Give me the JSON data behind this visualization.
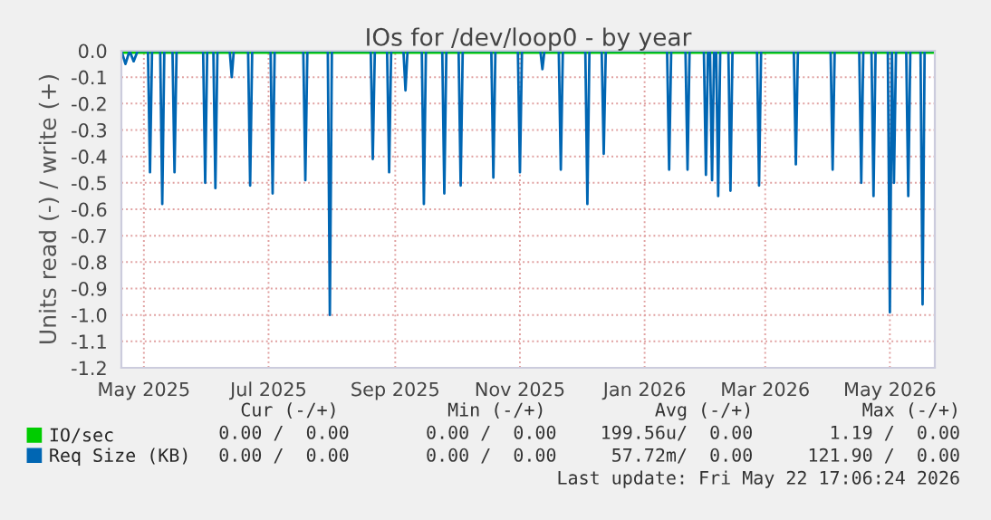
{
  "chart_data": {
    "type": "line",
    "title": "IOs for /dev/loop0 - by year",
    "ylabel": "Units read (-) / write (+)",
    "xlim": [
      "2025-04-20",
      "2026-05-23"
    ],
    "ylim": [
      -1.2,
      0.0
    ],
    "xticks": [
      {
        "value": "2025-05-01",
        "label": "May 2025"
      },
      {
        "value": "2025-07-01",
        "label": "Jul 2025"
      },
      {
        "value": "2025-09-01",
        "label": "Sep 2025"
      },
      {
        "value": "2025-11-01",
        "label": "Nov 2025"
      },
      {
        "value": "2026-01-01",
        "label": "Jan 2026"
      },
      {
        "value": "2026-03-01",
        "label": "Mar 2026"
      },
      {
        "value": "2026-05-01",
        "label": "May 2026"
      }
    ],
    "yticks": [
      {
        "value": 0,
        "label": "0.0"
      },
      -0.1,
      -0.2,
      -0.3,
      -0.4,
      -0.5,
      -0.6,
      -0.7,
      -0.8,
      -0.9,
      {
        "value": -1,
        "label": "-1.0"
      },
      -1.1,
      -1.2
    ],
    "grid": true,
    "legend": "bottom",
    "marker": "none",
    "line_style": "solid",
    "series": [
      {
        "name": "IO/sec",
        "color": "#00cc00",
        "x": [
          "2025-04-20",
          "2026-05-22"
        ],
        "values": [
          0.0,
          0.0
        ]
      },
      {
        "name": "Req Size (KB)",
        "color": "#0066b3",
        "x": [
          "2025-04-20",
          "2025-04-22",
          "2025-04-24",
          "2025-04-26",
          "2025-04-28",
          "2025-05-03",
          "2025-05-04",
          "2025-05-05",
          "2025-05-09",
          "2025-05-10",
          "2025-05-11",
          "2025-05-15",
          "2025-05-16",
          "2025-05-17",
          "2025-05-30",
          "2025-05-31",
          "2025-06-01",
          "2025-06-04",
          "2025-06-05",
          "2025-06-06",
          "2025-06-12",
          "2025-06-13",
          "2025-06-14",
          "2025-06-21",
          "2025-06-22",
          "2025-06-23",
          "2025-07-02",
          "2025-07-03",
          "2025-07-04",
          "2025-07-18",
          "2025-07-19",
          "2025-07-20",
          "2025-07-30",
          "2025-07-31",
          "2025-08-01",
          "2025-08-20",
          "2025-08-21",
          "2025-08-22",
          "2025-08-28",
          "2025-08-29",
          "2025-08-30",
          "2025-09-05",
          "2025-09-06",
          "2025-09-07",
          "2025-09-14",
          "2025-09-15",
          "2025-09-16",
          "2025-09-24",
          "2025-09-25",
          "2025-09-26",
          "2025-10-02",
          "2025-10-03",
          "2025-10-04",
          "2025-10-18",
          "2025-10-19",
          "2025-10-20",
          "2025-10-31",
          "2025-11-01",
          "2025-11-02",
          "2025-11-11",
          "2025-11-12",
          "2025-11-13",
          "2025-11-20",
          "2025-11-21",
          "2025-11-22",
          "2025-12-03",
          "2025-12-04",
          "2025-12-05",
          "2025-12-11",
          "2025-12-12",
          "2025-12-13",
          "2026-01-12",
          "2026-01-13",
          "2026-01-14",
          "2026-01-21",
          "2026-01-22",
          "2026-01-23",
          "2026-01-30",
          "2026-01-31",
          "2026-02-01",
          "2026-02-02",
          "2026-02-03",
          "2026-02-04",
          "2026-02-05",
          "2026-02-06",
          "2026-02-07",
          "2026-02-11",
          "2026-02-12",
          "2026-02-13",
          "2026-02-25",
          "2026-02-26",
          "2026-02-27",
          "2026-03-15",
          "2026-03-16",
          "2026-03-17",
          "2026-04-02",
          "2026-04-03",
          "2026-04-04",
          "2026-04-16",
          "2026-04-17",
          "2026-04-18",
          "2026-04-22",
          "2026-04-23",
          "2026-04-24",
          "2026-04-30",
          "2026-05-01",
          "2026-05-02",
          "2026-05-03",
          "2026-05-04",
          "2026-05-09",
          "2026-05-10",
          "2026-05-11",
          "2026-05-16",
          "2026-05-17",
          "2026-05-18",
          "2026-05-22"
        ],
        "values": [
          0,
          -0.05,
          0,
          -0.04,
          0,
          0,
          -0.46,
          0,
          0,
          -0.58,
          0,
          0,
          -0.46,
          0,
          0,
          -0.5,
          0,
          0,
          -0.52,
          0,
          0,
          -0.1,
          0,
          0,
          -0.51,
          0,
          0,
          -0.54,
          0,
          0,
          -0.49,
          0,
          0,
          -1.0,
          0,
          0,
          -0.41,
          0,
          0,
          -0.46,
          0,
          0,
          -0.15,
          0,
          0,
          -0.58,
          0,
          0,
          -0.54,
          0,
          0,
          -0.51,
          0,
          0,
          -0.48,
          0,
          0,
          -0.46,
          0,
          0,
          -0.07,
          0,
          0,
          -0.45,
          0,
          0,
          -0.58,
          0,
          0,
          -0.39,
          0,
          0,
          -0.45,
          0,
          0,
          -0.45,
          0,
          0,
          -0.47,
          0,
          0,
          -0.49,
          0,
          0,
          -0.55,
          0,
          0,
          -0.53,
          0,
          0,
          -0.51,
          0,
          0,
          -0.43,
          0,
          0,
          -0.45,
          0,
          0,
          -0.5,
          0,
          0,
          -0.55,
          0,
          0,
          -0.99,
          0,
          -0.5,
          0,
          0,
          -0.55,
          0,
          0,
          -0.96,
          0,
          0
        ]
      }
    ],
    "annotations": [
      "Cur (-/+)          Min (-/+)          Avg (-/+)          Max (-/+)",
      "0.00 /  0.00       0.00 /  0.00    199.56u/  0.00       1.19 /  0.00",
      "0.00 /  0.00       0.00 /  0.00     57.72m/  0.00     121.90 /  0.00",
      "Last update: Fri May 22 17:06:24 2026"
    ]
  }
}
